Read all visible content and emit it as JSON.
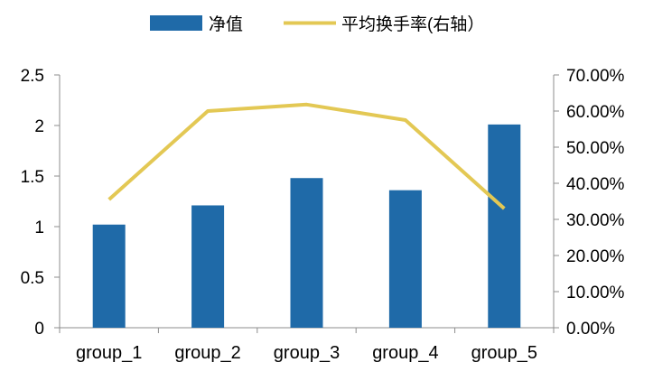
{
  "chart_data": {
    "type": "bar",
    "categories": [
      "group_1",
      "group_2",
      "group_3",
      "group_4",
      "group_5"
    ],
    "series": [
      {
        "name": "净值",
        "type": "bar",
        "axis": "left",
        "color": "#1f6aa8",
        "values": [
          1.02,
          1.21,
          1.48,
          1.36,
          2.01
        ]
      },
      {
        "name": "平均换手率(右轴）",
        "type": "line",
        "axis": "right",
        "color": "#e3c854",
        "values": [
          35.5,
          60.0,
          61.8,
          57.5,
          33.0
        ]
      }
    ],
    "y_left": {
      "ylim": [
        0,
        2.5
      ],
      "ticks": [
        "0",
        "0.5",
        "1",
        "1.5",
        "2",
        "2.5"
      ]
    },
    "y_right": {
      "ylim": [
        0,
        70
      ],
      "unit": "%",
      "ticks": [
        "0.00%",
        "10.00%",
        "20.00%",
        "30.00%",
        "40.00%",
        "50.00%",
        "60.00%",
        "70.00%"
      ]
    },
    "legend_position": "top-center",
    "grid": false
  }
}
